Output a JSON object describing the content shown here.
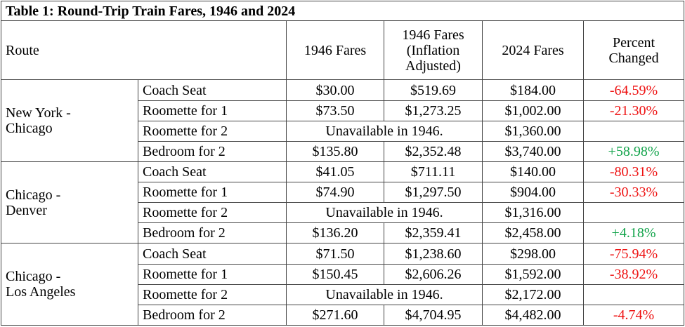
{
  "title": "Table 1: Round-Trip  Train Fares, 1946 and 2024",
  "headers": {
    "route": "Route",
    "fares_1946": "1946 Fares",
    "adj_line1": "1946 Fares",
    "adj_line2": "(Inflation",
    "adj_line3": "Adjusted)",
    "fares_2024": "2024 Fares",
    "pct_line1": "Percent",
    "pct_line2": "Changed"
  },
  "colors": {
    "negative": "#ee1111",
    "positive": "#11a34a",
    "border": "#444444"
  },
  "groups": [
    {
      "route_line1": "New York -",
      "route_line2": "Chicago",
      "rows": [
        {
          "type": "Coach Seat",
          "f1946": "$30.00",
          "adj": "$519.69",
          "f2024": "$184.00",
          "pct": "-64.59%",
          "sign": "neg"
        },
        {
          "type": "Roomette for 1",
          "f1946": "$73.50",
          "adj": "$1,273.25",
          "f2024": "$1,002.00",
          "pct": "-21.30%",
          "sign": "neg"
        },
        {
          "type": "Roomette for 2",
          "unavailable": "Unavailable in 1946.",
          "f2024": "$1,360.00",
          "pct": "",
          "sign": ""
        },
        {
          "type": "Bedroom for 2",
          "f1946": "$135.80",
          "adj": "$2,352.48",
          "f2024": "$3,740.00",
          "pct": "+58.98%",
          "sign": "pos"
        }
      ]
    },
    {
      "route_line1": "Chicago -",
      "route_line2": "Denver",
      "rows": [
        {
          "type": "Coach Seat",
          "f1946": "$41.05",
          "adj": "$711.11",
          "f2024": "$140.00",
          "pct": "-80.31%",
          "sign": "neg"
        },
        {
          "type": "Roomette for 1",
          "f1946": "$74.90",
          "adj": "$1,297.50",
          "f2024": "$904.00",
          "pct": "-30.33%",
          "sign": "neg"
        },
        {
          "type": "Roomette for 2",
          "unavailable": "Unavailable in 1946.",
          "f2024": "$1,316.00",
          "pct": "",
          "sign": ""
        },
        {
          "type": "Bedroom for 2",
          "f1946": "$136.20",
          "adj": "$2,359.41",
          "f2024": "$2,458.00",
          "pct": "+4.18%",
          "sign": "pos"
        }
      ]
    },
    {
      "route_line1": "Chicago -",
      "route_line2": "Los Angeles",
      "rows": [
        {
          "type": "Coach Seat",
          "f1946": "$71.50",
          "adj": "$1,238.60",
          "f2024": "$298.00",
          "pct": "-75.94%",
          "sign": "neg"
        },
        {
          "type": "Roomette for 1",
          "f1946": "$150.45",
          "adj": "$2,606.26",
          "f2024": "$1,592.00",
          "pct": "-38.92%",
          "sign": "neg"
        },
        {
          "type": "Roomette for 2",
          "unavailable": "Unavailable in 1946.",
          "f2024": "$2,172.00",
          "pct": "",
          "sign": ""
        },
        {
          "type": "Bedroom for 2",
          "f1946": "$271.60",
          "adj": "$4,704.95",
          "f2024": "$4,482.00",
          "pct": "-4.74%",
          "sign": "neg"
        }
      ]
    }
  ]
}
